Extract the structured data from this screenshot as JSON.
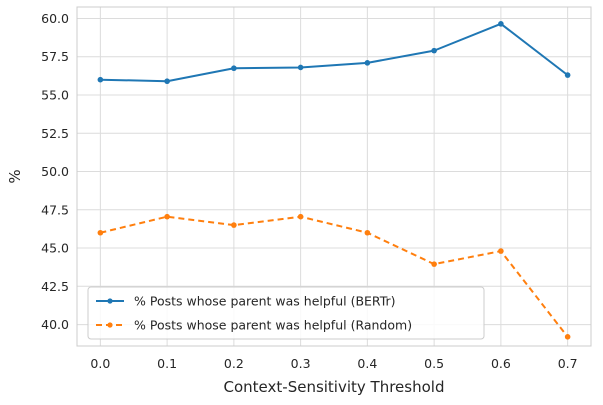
{
  "chart_data": {
    "type": "line",
    "title": "",
    "xlabel": "Context-Sensitivity Threshold",
    "ylabel": "%",
    "x": [
      0.0,
      0.1,
      0.2,
      0.3,
      0.4,
      0.5,
      0.6,
      0.7
    ],
    "x_tick_labels": [
      "0.0",
      "0.1",
      "0.2",
      "0.3",
      "0.4",
      "0.5",
      "0.6",
      "0.7"
    ],
    "y_ticks": [
      40.0,
      42.5,
      45.0,
      47.5,
      50.0,
      52.5,
      55.0,
      57.5,
      60.0
    ],
    "y_tick_labels": [
      "40.0",
      "42.5",
      "45.0",
      "47.5",
      "50.0",
      "52.5",
      "55.0",
      "57.5",
      "60.0"
    ],
    "xlim": [
      -0.035,
      0.735
    ],
    "ylim": [
      38.6,
      60.75
    ],
    "grid": true,
    "legend_position": "lower-left",
    "series": [
      {
        "name": "% Posts whose parent was helpful (BERTr)",
        "color": "#1f77b4",
        "linestyle": "solid",
        "values": [
          56.0,
          55.9,
          56.75,
          56.8,
          57.1,
          57.9,
          59.65,
          56.3
        ]
      },
      {
        "name": "% Posts whose parent was helpful (Random)",
        "color": "#ff7f0e",
        "linestyle": "dashed",
        "values": [
          46.0,
          47.05,
          46.5,
          47.05,
          46.0,
          43.95,
          44.8,
          39.2
        ]
      }
    ]
  }
}
